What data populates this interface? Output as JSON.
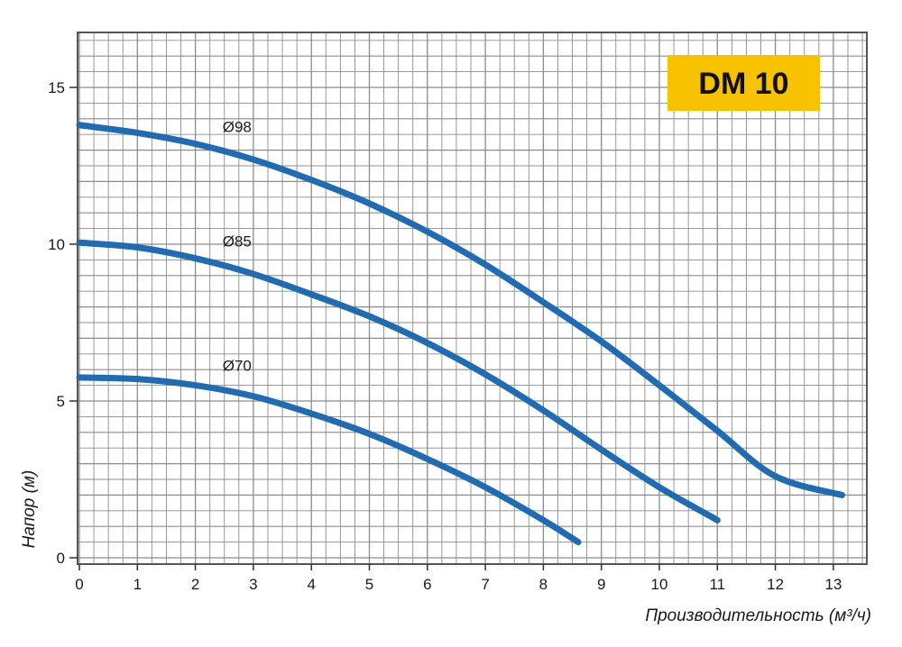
{
  "chart_data": {
    "type": "line",
    "model_label": "DM 10",
    "xlabel": "Производительность (м³/ч)",
    "ylabel": "Напор (м)",
    "xlim": [
      0,
      13.5
    ],
    "ylim": [
      0,
      16.8
    ],
    "x_ticks": [
      0,
      1,
      2,
      3,
      4,
      5,
      6,
      7,
      8,
      9,
      10,
      11,
      12,
      13
    ],
    "y_ticks": [
      0,
      5,
      10,
      15
    ],
    "grid": true,
    "colors": {
      "line": "#1f6bb4",
      "badge": "#f7c200",
      "grid": "#8c8c8c"
    },
    "series": [
      {
        "name": "Ø98",
        "x": [
          0,
          1,
          2,
          3,
          4,
          5,
          6,
          7,
          8,
          9,
          10,
          11,
          12,
          13.15
        ],
        "y": [
          13.8,
          13.55,
          13.2,
          12.7,
          12.05,
          11.3,
          10.4,
          9.35,
          8.15,
          6.9,
          5.5,
          4.05,
          2.6,
          2.0
        ]
      },
      {
        "name": "Ø85",
        "x": [
          0,
          1,
          2,
          3,
          4,
          5,
          6,
          7,
          8,
          9,
          10,
          11
        ],
        "y": [
          10.05,
          9.9,
          9.55,
          9.05,
          8.4,
          7.7,
          6.85,
          5.85,
          4.7,
          3.45,
          2.25,
          1.2
        ]
      },
      {
        "name": "Ø70",
        "x": [
          0,
          1,
          2,
          3,
          4,
          5,
          6,
          7,
          8,
          8.6
        ],
        "y": [
          5.75,
          5.7,
          5.5,
          5.15,
          4.6,
          3.95,
          3.15,
          2.25,
          1.2,
          0.5
        ]
      }
    ]
  }
}
